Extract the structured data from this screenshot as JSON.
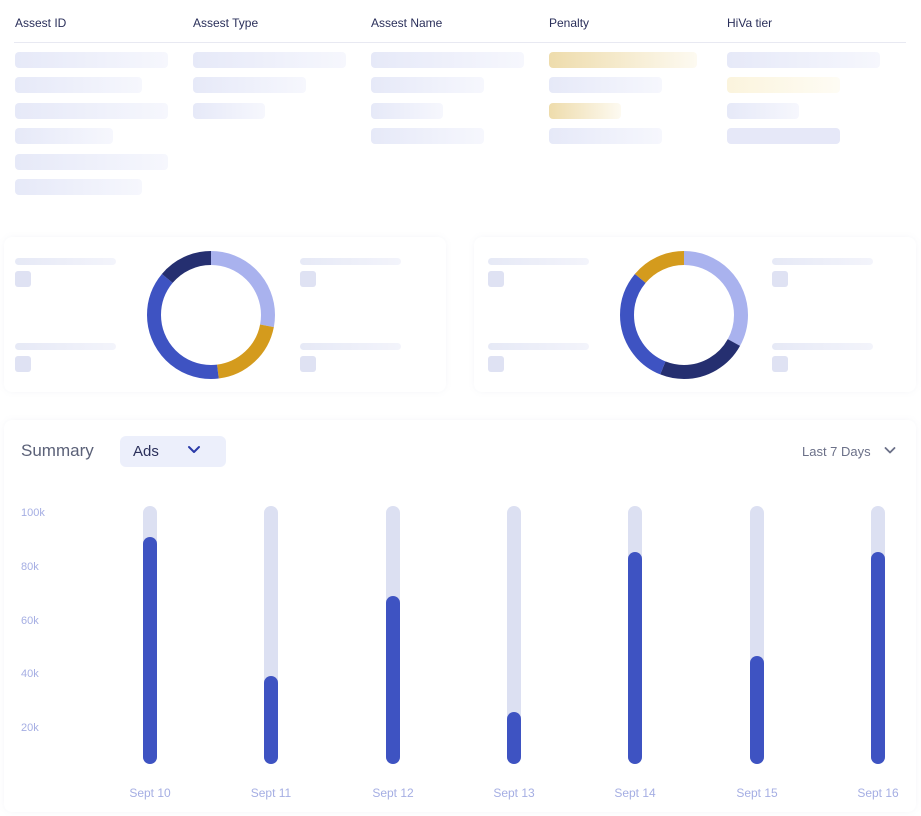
{
  "table": {
    "columns": [
      "Assest ID",
      "Assest Type",
      "Assest Name",
      "Penalty",
      "HiVa tier"
    ]
  },
  "summary": {
    "title": "Summary",
    "dropdown_value": "Ads",
    "range_label": "Last 7 Days"
  },
  "colors": {
    "bar": "#3e53c2",
    "track": "#dce0f2",
    "donut_light": "#a9b2ee",
    "donut_mid": "#3e53c2",
    "donut_dark": "#252f70",
    "donut_gold": "#d49b1d"
  },
  "donuts": [
    {
      "segments": [
        {
          "color": "#a9b2ee",
          "fraction": 0.28
        },
        {
          "color": "#d49b1d",
          "fraction": 0.2
        },
        {
          "color": "#3e53c2",
          "fraction": 0.38
        },
        {
          "color": "#252f70",
          "fraction": 0.14
        }
      ]
    },
    {
      "segments": [
        {
          "color": "#a9b2ee",
          "fraction": 0.33
        },
        {
          "color": "#252f70",
          "fraction": 0.23
        },
        {
          "color": "#3e53c2",
          "fraction": 0.3
        },
        {
          "color": "#d49b1d",
          "fraction": 0.14
        }
      ]
    }
  ],
  "chart_data": {
    "type": "bar",
    "categories": [
      "Sept 10",
      "Sept 11",
      "Sept 12",
      "Sept 13",
      "Sept 14",
      "Sept 15",
      "Sept 16"
    ],
    "values": [
      88,
      34,
      65,
      20,
      82,
      42,
      82
    ],
    "y_ticks": [
      "100k",
      "80k",
      "60k",
      "40k",
      "20k"
    ],
    "ylim": [
      0,
      100
    ],
    "grid": false
  }
}
